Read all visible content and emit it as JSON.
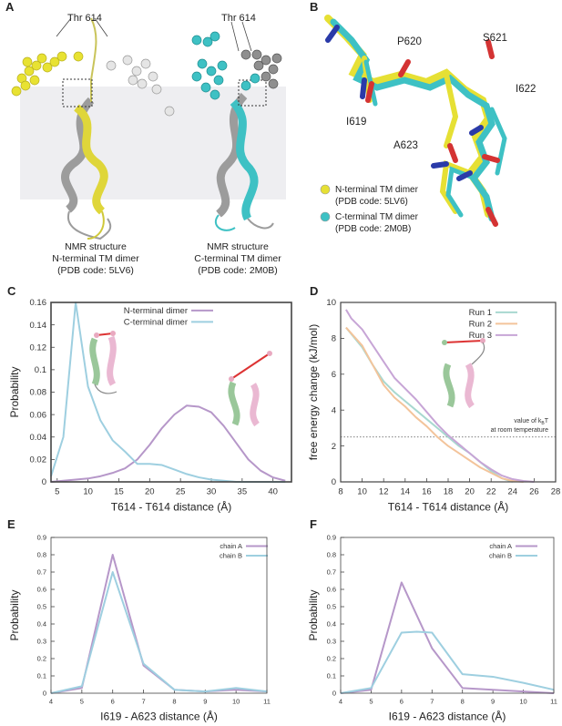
{
  "panel_letters": [
    "A",
    "B",
    "C",
    "D",
    "E",
    "F"
  ],
  "panel_a": {
    "labels": [
      "Thr 614",
      "Thr 614"
    ],
    "captions": [
      [
        "NMR structure",
        "N-terminal TM dimer",
        "(PDB code: 5LV6)"
      ],
      [
        "NMR structure",
        "C-terminal TM dimer",
        "(PDB code: 2M0B)"
      ]
    ]
  },
  "panel_b": {
    "residues": [
      "P620",
      "S621",
      "I622",
      "I619",
      "A623"
    ],
    "legend": [
      {
        "line1": "N-terminal TM dimer",
        "line2": "(PDB code: 5LV6)",
        "color": "#e6e034"
      },
      {
        "line1": "C-terminal TM dimer",
        "line2": "(PDB code: 2M0B)",
        "color": "#3ec1c4"
      }
    ]
  },
  "chart_data": [
    {
      "id": "C",
      "type": "line",
      "xlabel": "T614 - T614 distance (Å)",
      "ylabel": "Probability",
      "xlim": [
        4,
        43
      ],
      "ylim": [
        0,
        0.16
      ],
      "xticks": [
        5,
        10,
        15,
        20,
        25,
        30,
        35,
        40
      ],
      "yticks": [
        0,
        0.02,
        0.04,
        0.06,
        0.08,
        0.1,
        0.12,
        0.14,
        0.16
      ],
      "legend_position": "top-right",
      "series": [
        {
          "name": "N-terminal dimer",
          "color": "#b697c9",
          "x": [
            4,
            6,
            8,
            10,
            12,
            14,
            16,
            18,
            20,
            22,
            24,
            26,
            28,
            30,
            32,
            34,
            36,
            38,
            40,
            42
          ],
          "y": [
            0.0,
            0.001,
            0.002,
            0.003,
            0.005,
            0.008,
            0.012,
            0.02,
            0.033,
            0.048,
            0.06,
            0.068,
            0.067,
            0.062,
            0.05,
            0.035,
            0.02,
            0.01,
            0.004,
            0.001
          ]
        },
        {
          "name": "C-terminal dimer",
          "color": "#9ecfe0",
          "x": [
            4,
            6,
            8,
            10,
            12,
            14,
            16,
            18,
            20,
            22,
            24,
            26,
            28,
            30,
            32,
            34,
            36,
            38,
            40,
            42
          ],
          "y": [
            0.005,
            0.04,
            0.16,
            0.085,
            0.055,
            0.037,
            0.027,
            0.016,
            0.016,
            0.015,
            0.011,
            0.007,
            0.004,
            0.002,
            0.001,
            0.0,
            0.0,
            0.0,
            0.0,
            0.0
          ]
        }
      ]
    },
    {
      "id": "D",
      "type": "line",
      "xlabel": "T614 - T614 distance (Å)",
      "ylabel": "free energy change (kJ/mol)",
      "xlim": [
        8,
        28
      ],
      "ylim": [
        0,
        10
      ],
      "xticks": [
        8,
        10,
        12,
        14,
        16,
        18,
        20,
        22,
        24,
        26,
        28
      ],
      "yticks": [
        0,
        2,
        4,
        6,
        8,
        10
      ],
      "legend_position": "top-right",
      "reference_line": {
        "y": 2.5,
        "label_line1": "value of k",
        "label_sub": "B",
        "label_tail": "T",
        "label_line2": "at room temperature"
      },
      "series": [
        {
          "name": "Run 1",
          "color": "#a8d8d0",
          "x": [
            8.5,
            10,
            11,
            12,
            13,
            14,
            15,
            16,
            17,
            18,
            19,
            20,
            21,
            22,
            23,
            24
          ],
          "y": [
            8.6,
            7.5,
            6.5,
            5.6,
            5.0,
            4.5,
            4.0,
            3.5,
            3.0,
            2.5,
            2.0,
            1.6,
            1.1,
            0.6,
            0.2,
            0.0
          ]
        },
        {
          "name": "Run 2",
          "color": "#f3c49b",
          "x": [
            8.5,
            10,
            11,
            12,
            13,
            14,
            15,
            16,
            17,
            18,
            19,
            20,
            21,
            22,
            23,
            24,
            25
          ],
          "y": [
            8.6,
            7.6,
            6.5,
            5.4,
            4.7,
            4.2,
            3.6,
            3.1,
            2.5,
            2.0,
            1.6,
            1.2,
            0.8,
            0.5,
            0.2,
            0.05,
            0.0
          ]
        },
        {
          "name": "Run 3",
          "color": "#c7a5d6",
          "x": [
            8.5,
            9,
            10,
            11,
            12,
            13,
            14,
            15,
            16,
            17,
            18,
            19,
            20,
            21,
            22,
            23,
            24,
            25,
            26
          ],
          "y": [
            9.6,
            9.1,
            8.5,
            7.6,
            6.7,
            5.8,
            5.2,
            4.6,
            3.9,
            3.2,
            2.6,
            2.1,
            1.6,
            1.1,
            0.7,
            0.35,
            0.15,
            0.05,
            0.0
          ]
        }
      ]
    },
    {
      "id": "E",
      "type": "line",
      "xlabel": "I619 - A623 distance (Å)",
      "ylabel": "Probability",
      "xlim": [
        4,
        11
      ],
      "ylim": [
        0,
        0.9
      ],
      "xticks": [
        4,
        5,
        6,
        7,
        8,
        9,
        10,
        11
      ],
      "yticks": [
        0,
        0.1,
        0.2,
        0.3,
        0.4,
        0.5,
        0.6,
        0.7,
        0.8,
        0.9
      ],
      "legend_position": "top-right",
      "series": [
        {
          "name": "chain A",
          "color": "#b697c9",
          "x": [
            4,
            5,
            6,
            7,
            8,
            9,
            10,
            11
          ],
          "y": [
            0.0,
            0.03,
            0.8,
            0.16,
            0.02,
            0.01,
            0.02,
            0.01
          ]
        },
        {
          "name": "chain B",
          "color": "#9ecfe0",
          "x": [
            4,
            5,
            6,
            7,
            8,
            9,
            10,
            11
          ],
          "y": [
            0.0,
            0.04,
            0.7,
            0.17,
            0.02,
            0.01,
            0.03,
            0.01
          ]
        }
      ]
    },
    {
      "id": "F",
      "type": "line",
      "xlabel": "I619 - A623 distance (Å)",
      "ylabel": "Probability",
      "xlim": [
        4,
        11
      ],
      "ylim": [
        0,
        0.9
      ],
      "xticks": [
        4,
        5,
        6,
        7,
        8,
        9,
        10,
        11
      ],
      "yticks": [
        0,
        0.1,
        0.2,
        0.3,
        0.4,
        0.5,
        0.6,
        0.7,
        0.8,
        0.9
      ],
      "legend_position": "top-right",
      "series": [
        {
          "name": "chain A",
          "color": "#b697c9",
          "x": [
            4,
            5,
            6,
            7,
            8,
            9,
            10,
            11
          ],
          "y": [
            0.0,
            0.02,
            0.64,
            0.26,
            0.03,
            0.02,
            0.01,
            0.0
          ]
        },
        {
          "name": "chain B",
          "color": "#9ecfe0",
          "x": [
            4,
            5,
            6,
            6.5,
            7,
            8,
            9,
            10,
            11
          ],
          "y": [
            0.0,
            0.03,
            0.35,
            0.355,
            0.35,
            0.11,
            0.095,
            0.06,
            0.02
          ]
        }
      ]
    }
  ]
}
